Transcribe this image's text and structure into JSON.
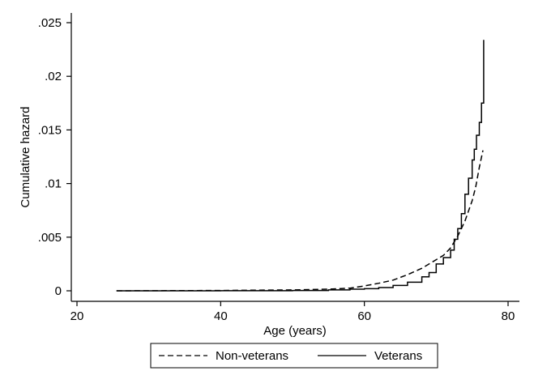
{
  "chart_data": {
    "type": "line",
    "xlabel": "Age (years)",
    "ylabel": "Cumulative hazard",
    "xlim": [
      20,
      80
    ],
    "ylim": [
      0,
      0.025
    ],
    "x_ticks": [
      20,
      40,
      60,
      80
    ],
    "x_tick_labels": [
      "20",
      "40",
      "60",
      "80"
    ],
    "y_ticks": [
      0,
      0.005,
      0.01,
      0.015,
      0.02,
      0.025
    ],
    "y_tick_labels": [
      "0",
      ".005",
      ".01",
      ".015",
      ".02",
      ".025"
    ],
    "grid": false,
    "legend_position": "bottom",
    "series": [
      {
        "name": "Non-veterans",
        "style": "dashed",
        "color": "#000000",
        "points": [
          [
            25.5,
            0
          ],
          [
            40,
            3e-05
          ],
          [
            50,
            8e-05
          ],
          [
            55,
            0.00015
          ],
          [
            58,
            0.00025
          ],
          [
            60,
            0.00045
          ],
          [
            62,
            0.0007
          ],
          [
            64,
            0.001
          ],
          [
            66,
            0.0015
          ],
          [
            68,
            0.0021
          ],
          [
            70,
            0.0029
          ],
          [
            71,
            0.0033
          ],
          [
            72,
            0.004
          ],
          [
            73,
            0.0051
          ],
          [
            74,
            0.0065
          ],
          [
            75,
            0.0084
          ],
          [
            75.5,
            0.0097
          ],
          [
            76,
            0.0115
          ],
          [
            76.5,
            0.0131
          ]
        ]
      },
      {
        "name": "Veterans",
        "style": "solid",
        "color": "#000000",
        "points": [
          [
            25.5,
            0
          ],
          [
            40,
            1e-05
          ],
          [
            50,
            3e-05
          ],
          [
            55,
            8e-05
          ],
          [
            58,
            0.00015
          ],
          [
            60,
            0.0002
          ],
          [
            62,
            0.0003
          ],
          [
            64,
            0.0005
          ],
          [
            66,
            0.0008
          ],
          [
            68,
            0.0013
          ],
          [
            69,
            0.0017
          ],
          [
            70,
            0.0025
          ],
          [
            71,
            0.0031
          ],
          [
            72,
            0.0038
          ],
          [
            72.5,
            0.0048
          ],
          [
            73,
            0.0058
          ],
          [
            73.5,
            0.0072
          ],
          [
            74,
            0.009
          ],
          [
            74.5,
            0.0105
          ],
          [
            75,
            0.0122
          ],
          [
            75.3,
            0.0132
          ],
          [
            75.6,
            0.0145
          ],
          [
            76,
            0.0157
          ],
          [
            76.3,
            0.0175
          ],
          [
            76.6,
            0.0175
          ],
          [
            76.6,
            0.0234
          ]
        ]
      }
    ]
  }
}
